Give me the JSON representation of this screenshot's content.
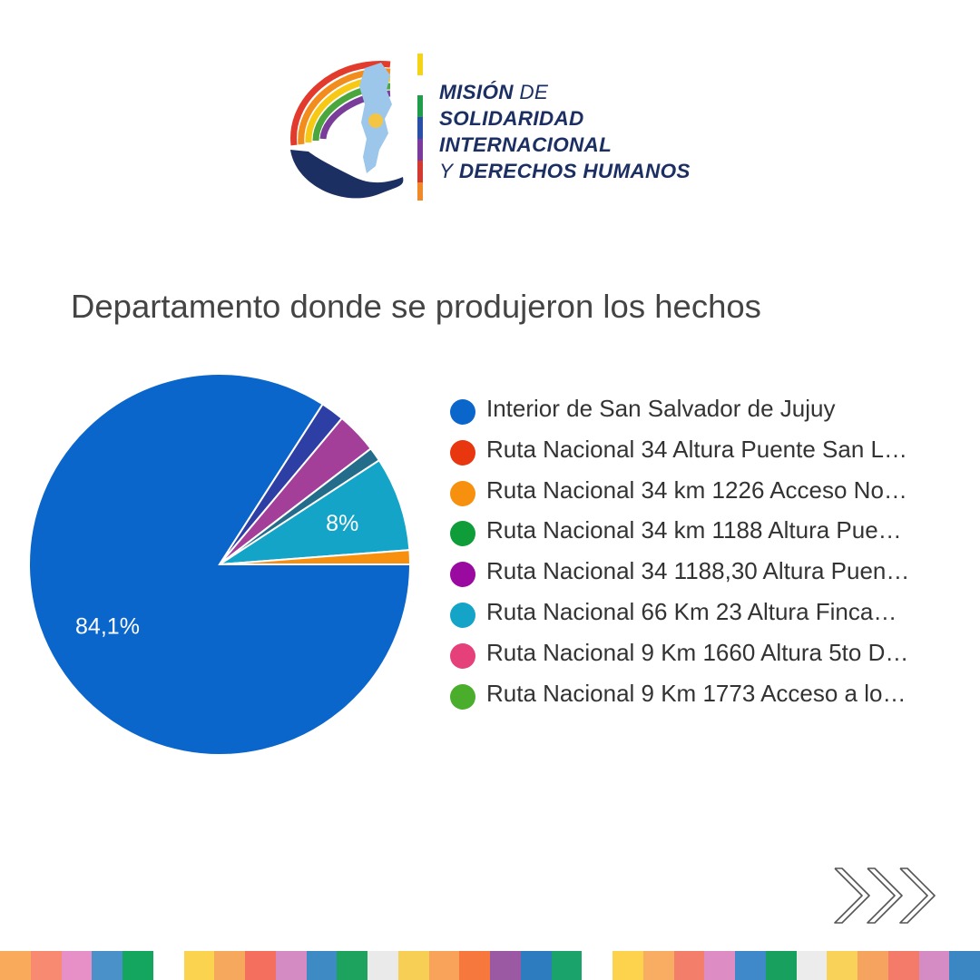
{
  "logo": {
    "line1_bold": "MISIÓN",
    "line1_light": "DE",
    "line2": "SOLIDARIDAD",
    "line3": "INTERNACIONAL",
    "line4_light": "Y",
    "line4_bold": "DERECHOS HUMANOS"
  },
  "chart_data": {
    "type": "pie",
    "title": "Departamento donde se produjeron los hechos",
    "legend_position": "right",
    "series": [
      {
        "name": "Interior de San Salvador de Jujuy",
        "value": 84.1,
        "label": "84,1%",
        "color": "#0b66cc"
      },
      {
        "name": "Ruta Nacional 34 Altura Puente San L…",
        "value": 0,
        "label": "",
        "color": "#e8360e"
      },
      {
        "name": "Ruta Nacional 34 km 1226 Acceso No…",
        "value": 1.2,
        "label": "",
        "color": "#f7900f"
      },
      {
        "name": "Ruta Nacional 34 km 1188 Altura Pue…",
        "value": 0,
        "label": "",
        "color": "#0f9d3a"
      },
      {
        "name": "Ruta Nacional 34 1188,30 Altura Puen…",
        "value": 0,
        "label": "",
        "color": "#9b0aa0"
      },
      {
        "name": "Ruta Nacional 66 Km 23 Altura Finca…",
        "value": 8.0,
        "label": "8%",
        "color": "#14a4c8"
      },
      {
        "name": "Ruta Nacional 9 Km 1660 Altura 5to D…",
        "value": 0,
        "label": "",
        "color": "#e6407a"
      },
      {
        "name": "Ruta Nacional 9 Km 1773 Acceso a lo…",
        "value": 0,
        "label": "",
        "color": "#4aad2b"
      }
    ],
    "unlisted_slices": [
      {
        "value": 1.2,
        "color": "#236c8a"
      },
      {
        "value": 3.5,
        "color": "#a43f99"
      },
      {
        "value": 2.0,
        "color": "#2d3fa4"
      }
    ]
  },
  "stripe_colors": [
    "#f9aa5a",
    "#f98a72",
    "#e690c7",
    "#4a90c9",
    "#14a65f",
    "#ffffff",
    "#fcd34f",
    "#f6a85c",
    "#f56f5e",
    "#d48bc4",
    "#3d8ac4",
    "#1ea35f",
    "#eaeaea",
    "#f7cf55",
    "#f8a25a",
    "#f7783d",
    "#9b59a4",
    "#2e7cc0",
    "#1aa36a",
    "#ffffff",
    "#fdd24c",
    "#f8ad62",
    "#f37f6a",
    "#dd8dc4",
    "#3f88c9",
    "#18a05f",
    "#ececec",
    "#f9d25a",
    "#f6a360",
    "#f47b69",
    "#d58bc3",
    "#3a87c4"
  ]
}
